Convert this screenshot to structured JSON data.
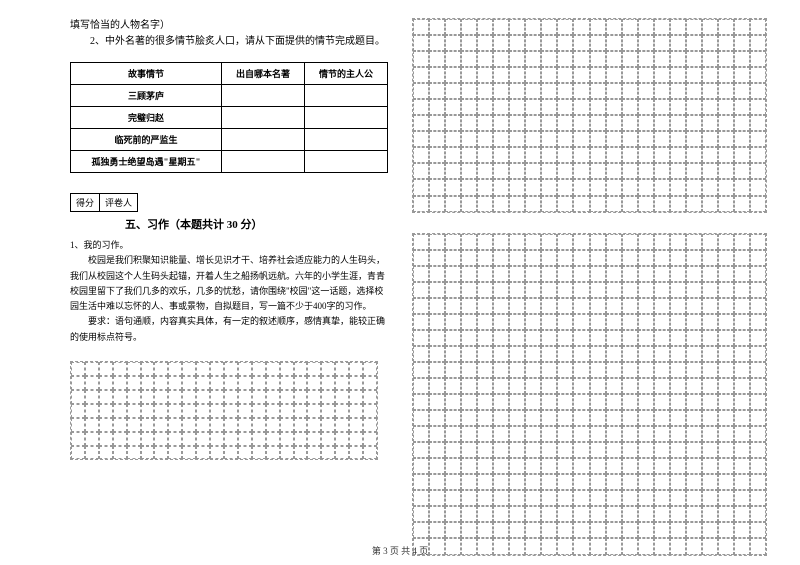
{
  "intro": {
    "line1": "填写恰当的人物名字）",
    "line2": "2、中外名著的很多情节脍炙人口，请从下面提供的情节完成题目。"
  },
  "table": {
    "headers": [
      "故事情节",
      "出自哪本名著",
      "情节的主人公"
    ],
    "rows": [
      [
        "三顾茅庐",
        "",
        ""
      ],
      [
        "完璧归赵",
        "",
        ""
      ],
      [
        "临死前的严监生",
        "",
        ""
      ],
      [
        "孤独勇士绝望岛遇\"星期五\"",
        "",
        ""
      ]
    ]
  },
  "scorebox": {
    "label1": "得分",
    "label2": "评卷人"
  },
  "section5": {
    "title": "五、习作（本题共计 30 分）",
    "item1": "1、我的习作。",
    "para1": "校园是我们积聚知识能量、增长见识才干、培养社会适应能力的人生码头，我们从校园这个人生码头起锚，开着人生之船扬帆远航。六年的小学生涯，青青校园里留下了我们几多的欢乐，几多的忧愁，请你围绕\"校园\"这一话题，选择校园生活中难以忘怀的人、事或景物，自拟题目，写一篇不少于400字的习作。",
    "para2": "要求：语句通顺，内容真实具体，有一定的叙述顺序，感情真挚，能较正确的使用标点符号。"
  },
  "grids": {
    "leftGrid": {
      "rows": 7,
      "cols": 22
    },
    "rightGrid1": {
      "rows": 12,
      "cols": 22
    },
    "rightGrid2": {
      "rows": 20,
      "cols": 22
    }
  },
  "pageNumber": "第 3 页 共 4 页",
  "colors": {
    "text": "#000000",
    "gridBorder": "#999999",
    "background": "#ffffff"
  }
}
